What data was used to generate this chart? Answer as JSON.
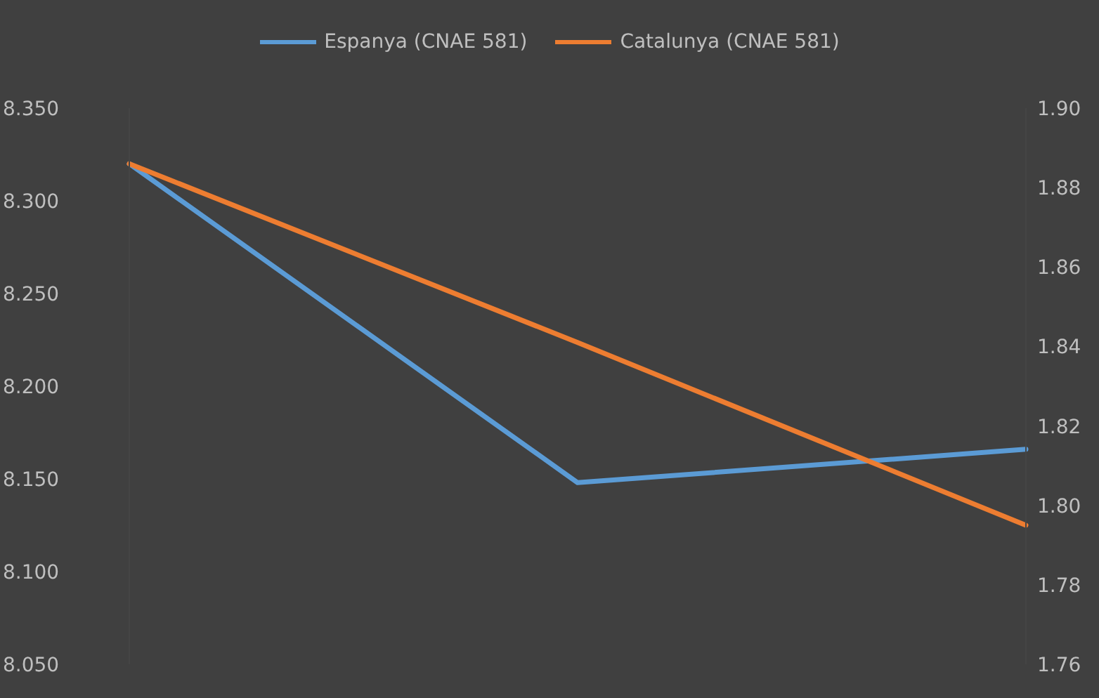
{
  "chart_data": {
    "type": "line",
    "categories": [
      null,
      null,
      null
    ],
    "series": [
      {
        "name": "Espanya (CNAE 581)",
        "color": "#5b9bd5",
        "values": [
          8.32,
          8.148,
          8.166
        ]
      },
      {
        "name": "Catalunya (CNAE 581)",
        "color": "#ed7d31",
        "values": [
          1.886,
          1.841,
          1.795
        ],
        "axis": "y2"
      }
    ],
    "ylim": [
      8.05,
      8.35
    ],
    "yticks": [
      {
        "value": 8.05,
        "label": "8.050"
      },
      {
        "value": 8.1,
        "label": "8.100"
      },
      {
        "value": 8.15,
        "label": "8.150"
      },
      {
        "value": 8.2,
        "label": "8.200"
      },
      {
        "value": 8.25,
        "label": "8.250"
      },
      {
        "value": 8.3,
        "label": "8.300"
      },
      {
        "value": 8.35,
        "label": "8.350"
      }
    ],
    "y2lim": [
      1.76,
      1.9
    ],
    "y2ticks": [
      {
        "value": 1.76,
        "label": "1.76"
      },
      {
        "value": 1.78,
        "label": "1.78"
      },
      {
        "value": 1.8,
        "label": "1.80"
      },
      {
        "value": 1.82,
        "label": "1.82"
      },
      {
        "value": 1.84,
        "label": "1.84"
      },
      {
        "value": 1.86,
        "label": "1.86"
      },
      {
        "value": 1.88,
        "label": "1.88"
      },
      {
        "value": 1.9,
        "label": "1.90"
      }
    ],
    "grid": false,
    "legend": "top",
    "marker": "none",
    "line_style": "solid"
  }
}
